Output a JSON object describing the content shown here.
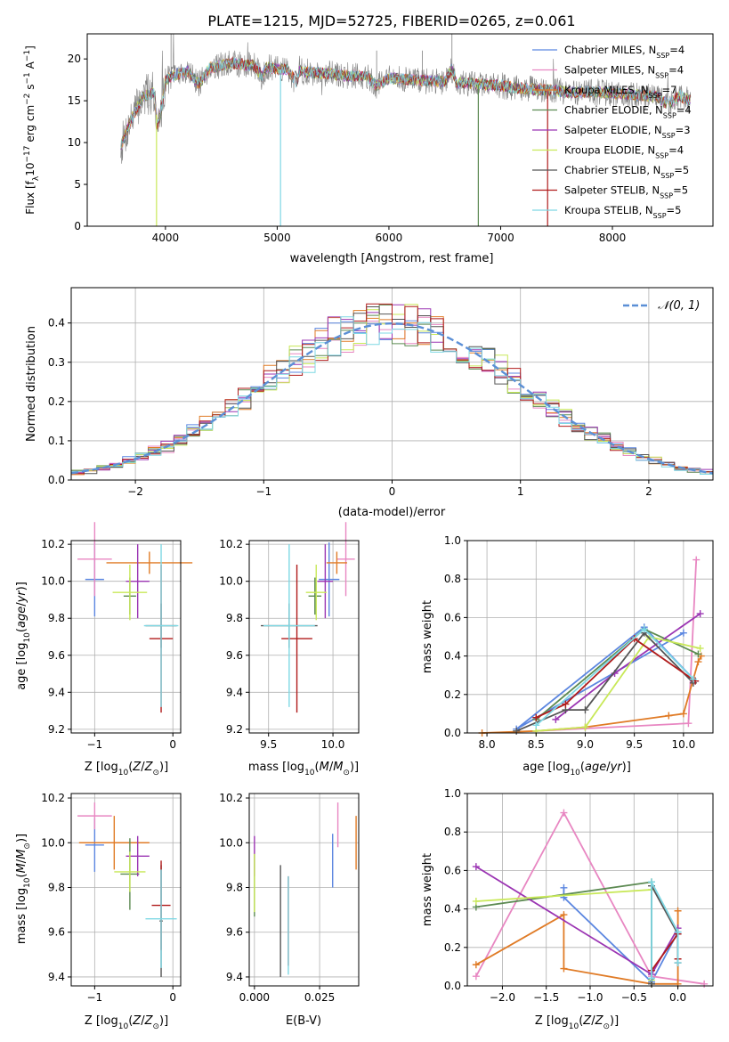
{
  "figure_title": "PLATE=1215, MJD=52725, FIBERID=0265, z=0.061",
  "colors": {
    "Chabrier MILES": "#5b86e0",
    "Salpeter MILES": "#e887c2",
    "Kroupa MILES": "#e07b26",
    "Chabrier ELODIE": "#5c8a52",
    "Salpeter ELODIE": "#9b35b3",
    "Kroupa ELODIE": "#c8e858",
    "Chabrier STELIB": "#555555",
    "Salpeter STELIB": "#b01c1c",
    "Kroupa STELIB": "#7fd8e4"
  },
  "panels": {
    "spectrum": {
      "xlabel": "wavelength [Angstrom, rest frame]",
      "ylabel": "Flux [fλ10⁻¹⁷ erg cm⁻² s⁻¹ A⁻¹]",
      "xticks": [
        "4000",
        "5000",
        "6000",
        "7000",
        "8000"
      ],
      "yticks": [
        "0",
        "5",
        "10",
        "15",
        "20"
      ]
    },
    "histogram": {
      "xlabel": "(data-model)/error",
      "ylabel": "Normed distribution",
      "xticks": [
        "−2",
        "−1",
        "0",
        "1",
        "2"
      ],
      "yticks": [
        "0.0",
        "0.1",
        "0.2",
        "0.3",
        "0.4"
      ],
      "legend_label": "𝒩(0, 1)"
    },
    "age_Z": {
      "xlabel": "Z [log₁₀(Z/Z⊙)]",
      "ylabel": "age  [log₁₀(age/yr)]",
      "xticks": [
        "−1",
        "0"
      ],
      "yticks": [
        "9.2",
        "9.4",
        "9.6",
        "9.8",
        "10.0",
        "10.2"
      ]
    },
    "age_mass": {
      "xlabel": "mass [log₁₀(M/M⊙)]",
      "xticks": [
        "9.5",
        "10.0"
      ],
      "yticks": [
        "9.2",
        "9.4",
        "9.6",
        "9.8",
        "10.0",
        "10.2"
      ]
    },
    "weight_age": {
      "xlabel": "age  [log₁₀(age/yr)]",
      "ylabel": "mass weight",
      "xticks": [
        "8.0",
        "8.5",
        "9.0",
        "9.5",
        "10.0"
      ],
      "yticks": [
        "0.0",
        "0.2",
        "0.4",
        "0.6",
        "0.8",
        "1.0"
      ]
    },
    "mass_Z": {
      "xlabel": "Z [log₁₀(Z/Z⊙)]",
      "ylabel": "mass [log₁₀(M/M⊙)]",
      "xticks": [
        "−1",
        "0"
      ],
      "yticks": [
        "9.4",
        "9.6",
        "9.8",
        "10.0",
        "10.2"
      ]
    },
    "mass_ebv": {
      "xlabel": "E(B-V)",
      "xticks": [
        "0.000",
        "0.025"
      ],
      "yticks": [
        "9.4",
        "9.6",
        "9.8",
        "10.0",
        "10.2"
      ]
    },
    "weight_Z": {
      "xlabel": "Z [log₁₀(Z/Z⊙)]",
      "ylabel": "mass weight",
      "xticks": [
        "−2.0",
        "−1.5",
        "−1.0",
        "−0.5",
        "0.0"
      ],
      "yticks": [
        "0.0",
        "0.2",
        "0.4",
        "0.6",
        "0.8",
        "1.0"
      ]
    }
  },
  "chart_data": [
    {
      "type": "line",
      "title": "PLATE=1215, MJD=52725, FIBERID=0265, z=0.061",
      "xlabel": "wavelength [Angstrom, rest frame]",
      "ylabel": "Flux [fλ10⁻¹⁷ erg cm⁻² s⁻¹ A⁻¹]",
      "xlim": [
        3300,
        8900
      ],
      "ylim": [
        0,
        23
      ],
      "grid": false,
      "legend_position": "top-right",
      "spectrum_anchors": {
        "x": [
          3600,
          3700,
          3800,
          3900,
          3930,
          3970,
          4000,
          4100,
          4200,
          4300,
          4400,
          4500,
          4600,
          4700,
          4800,
          4861,
          4900,
          5000,
          5100,
          5175,
          5200,
          5300,
          5400,
          5500,
          5600,
          5700,
          5800,
          5890,
          6000,
          6100,
          6200,
          6300,
          6400,
          6500,
          6563,
          6600,
          6700,
          6800,
          6900,
          7000,
          7100,
          7200,
          7300,
          7400,
          7500,
          7600,
          7700,
          7800,
          7900,
          8000,
          8100,
          8200,
          8300,
          8400,
          8500,
          8600,
          8700
        ],
        "y": [
          9.5,
          13.0,
          15.5,
          16.0,
          12.0,
          14.5,
          17.5,
          18.2,
          18.5,
          17.0,
          19.0,
          19.2,
          19.5,
          19.3,
          19.2,
          17.8,
          19.0,
          18.8,
          18.7,
          17.0,
          18.5,
          18.4,
          18.3,
          18.2,
          18.0,
          18.0,
          17.9,
          16.8,
          17.7,
          17.6,
          17.5,
          17.4,
          17.3,
          17.3,
          18.8,
          17.2,
          17.1,
          17.0,
          16.9,
          16.8,
          16.6,
          16.5,
          16.4,
          16.3,
          16.2,
          16.0,
          16.0,
          16.1,
          16.0,
          15.9,
          15.8,
          15.7,
          15.6,
          15.5,
          14.5,
          15.6,
          15.0
        ]
      },
      "series": [
        {
          "name": "Chabrier MILES, N_SSP=4",
          "legend": "Chabrier MILES, N",
          "legend_sub": "SSP",
          "legend_tail": "=4",
          "color": "#5b86e0"
        },
        {
          "name": "Salpeter MILES, N_SSP=4",
          "legend": "Salpeter MILES, N",
          "legend_sub": "SSP",
          "legend_tail": "=4",
          "color": "#e887c2"
        },
        {
          "name": "Kroupa MILES, N_SSP=7",
          "legend": "Kroupa MILES, N",
          "legend_sub": "SSP",
          "legend_tail": "=7",
          "color": "#e07b26"
        },
        {
          "name": "Chabrier ELODIE, N_SSP=4",
          "legend": "Chabrier ELODIE, N",
          "legend_sub": "SSP",
          "legend_tail": "=4",
          "color": "#5c8a52"
        },
        {
          "name": "Salpeter ELODIE, N_SSP=3",
          "legend": "Salpeter ELODIE, N",
          "legend_sub": "SSP",
          "legend_tail": "=3",
          "color": "#9b35b3"
        },
        {
          "name": "Kroupa ELODIE, N_SSP=4",
          "legend": "Kroupa ELODIE, N",
          "legend_sub": "SSP",
          "legend_tail": "=4",
          "color": "#c8e858"
        },
        {
          "name": "Chabrier STELIB, N_SSP=5",
          "legend": "Chabrier STELIB, N",
          "legend_sub": "SSP",
          "legend_tail": "=5",
          "color": "#555555"
        },
        {
          "name": "Salpeter STELIB, N_SSP=5",
          "legend": "Salpeter STELIB, N",
          "legend_sub": "SSP",
          "legend_tail": "=5",
          "color": "#b01c1c"
        },
        {
          "name": "Kroupa STELIB, N_SSP=5",
          "legend": "Kroupa STELIB, N",
          "legend_sub": "SSP",
          "legend_tail": "=5",
          "color": "#7fd8e4"
        }
      ],
      "model_spikes": [
        {
          "x": 3920,
          "color": "#c8e858"
        },
        {
          "x": 5030,
          "color": "#7fd8e4"
        },
        {
          "x": 6800,
          "color": "#5c8a52"
        },
        {
          "x": 7420,
          "color": "#b01c1c"
        }
      ]
    },
    {
      "type": "histogram",
      "xlabel": "(data-model)/error",
      "ylabel": "Normed distribution",
      "xlim": [
        -2.5,
        2.5
      ],
      "ylim": [
        0,
        0.49
      ],
      "grid": true,
      "bin_width": 0.1,
      "reference_curve": {
        "name": "𝒩(0, 1)",
        "mean": 0,
        "sigma": 1,
        "color": "#5b8fd6",
        "style": "dashed"
      },
      "legend_position": "top-right"
    },
    {
      "type": "scatter",
      "xlabel": "Z [log₁₀(Z/Z⊙)]",
      "ylabel": "age  [log₁₀(age/yr)]",
      "xlim": [
        -1.3,
        0.1
      ],
      "ylim": [
        9.18,
        10.22
      ],
      "points": [
        {
          "series": "Chabrier MILES",
          "x": -1.0,
          "xerr": 0.12,
          "y": 10.01,
          "yerr": 0.2
        },
        {
          "series": "Salpeter MILES",
          "x": -1.0,
          "xerr": 0.22,
          "y": 10.12,
          "yerr": 0.2
        },
        {
          "series": "Kroupa MILES",
          "x": -0.3,
          "xerr": 0.55,
          "y": 10.1,
          "yerr": 0.06
        },
        {
          "series": "Chabrier ELODIE",
          "x": -0.55,
          "xerr": 0.08,
          "y": 9.92,
          "yerr": 0.1
        },
        {
          "series": "Salpeter ELODIE",
          "x": -0.45,
          "xerr": 0.15,
          "y": 10.0,
          "yerr": 0.2
        },
        {
          "series": "Kroupa ELODIE",
          "x": -0.55,
          "xerr": 0.22,
          "y": 9.94,
          "yerr": 0.15
        },
        {
          "series": "Chabrier STELIB",
          "x": -0.15,
          "xerr": 0.2,
          "y": 9.76,
          "yerr": 0.12
        },
        {
          "series": "Salpeter STELIB",
          "x": -0.15,
          "xerr": 0.15,
          "y": 9.69,
          "yerr": 0.4
        },
        {
          "series": "Kroupa STELIB",
          "x": -0.15,
          "xerr": 0.22,
          "y": 9.76,
          "yerr": 0.44
        }
      ]
    },
    {
      "type": "scatter",
      "xlabel": "mass [log₁₀(M/M⊙)]",
      "xlim": [
        9.35,
        10.2
      ],
      "ylim": [
        9.18,
        10.22
      ],
      "points": [
        {
          "series": "Chabrier MILES",
          "x": 9.97,
          "xerr": 0.08,
          "y": 10.01,
          "yerr": 0.2
        },
        {
          "series": "Salpeter MILES",
          "x": 10.1,
          "xerr": 0.07,
          "y": 10.12,
          "yerr": 0.2
        },
        {
          "series": "Kroupa MILES",
          "x": 10.03,
          "xerr": 0.08,
          "y": 10.1,
          "yerr": 0.06
        },
        {
          "series": "Chabrier ELODIE",
          "x": 9.86,
          "xerr": 0.05,
          "y": 9.92,
          "yerr": 0.1
        },
        {
          "series": "Salpeter ELODIE",
          "x": 9.94,
          "xerr": 0.06,
          "y": 10.0,
          "yerr": 0.2
        },
        {
          "series": "Kroupa ELODIE",
          "x": 9.87,
          "xerr": 0.08,
          "y": 9.94,
          "yerr": 0.15
        },
        {
          "series": "Chabrier STELIB",
          "x": 9.66,
          "xerr": 0.22,
          "y": 9.76,
          "yerr": 0.12
        },
        {
          "series": "Salpeter STELIB",
          "x": 9.72,
          "xerr": 0.12,
          "y": 9.69,
          "yerr": 0.4
        },
        {
          "series": "Kroupa STELIB",
          "x": 9.66,
          "xerr": 0.2,
          "y": 9.76,
          "yerr": 0.44
        }
      ]
    },
    {
      "type": "line",
      "xlabel": "age  [log₁₀(age/yr)]",
      "ylabel": "mass weight",
      "xlim": [
        7.8,
        10.3
      ],
      "ylim": [
        0,
        1.0
      ],
      "grid": true,
      "series": [
        {
          "name": "Chabrier MILES",
          "x": [
            10.0,
            8.3,
            9.6,
            10.12
          ],
          "y": [
            0.52,
            0.02,
            0.55,
            0.27
          ]
        },
        {
          "name": "Salpeter MILES",
          "x": [
            8.5,
            10.05,
            10.13
          ],
          "y": [
            0.01,
            0.05,
            0.9
          ]
        },
        {
          "name": "Kroupa MILES",
          "x": [
            7.95,
            8.5,
            9.0,
            9.85,
            10.0,
            10.15,
            10.18
          ],
          "y": [
            0.0,
            0.01,
            0.03,
            0.09,
            0.1,
            0.37,
            0.4
          ]
        },
        {
          "name": "Chabrier ELODIE",
          "x": [
            8.5,
            9.6,
            10.15
          ],
          "y": [
            0.07,
            0.54,
            0.41
          ]
        },
        {
          "name": "Salpeter ELODIE",
          "x": [
            8.7,
            9.3,
            10.17
          ],
          "y": [
            0.07,
            0.31,
            0.62
          ]
        },
        {
          "name": "Kroupa ELODIE",
          "x": [
            8.5,
            9.0,
            9.65,
            10.17
          ],
          "y": [
            0.01,
            0.03,
            0.5,
            0.44
          ]
        },
        {
          "name": "Chabrier STELIB",
          "x": [
            8.3,
            8.8,
            9.0,
            9.6,
            10.1
          ],
          "y": [
            0.01,
            0.12,
            0.12,
            0.52,
            0.26
          ]
        },
        {
          "name": "Salpeter STELIB",
          "x": [
            8.5,
            8.8,
            9.5,
            10.12
          ],
          "y": [
            0.08,
            0.15,
            0.49,
            0.27
          ]
        },
        {
          "name": "Kroupa STELIB",
          "x": [
            8.5,
            9.6,
            10.1
          ],
          "y": [
            0.04,
            0.54,
            0.28
          ]
        }
      ]
    },
    {
      "type": "scatter",
      "xlabel": "Z [log₁₀(Z/Z⊙)]",
      "ylabel": "mass [log₁₀(M/M⊙)]",
      "xlim": [
        -1.3,
        0.1
      ],
      "ylim": [
        9.36,
        10.22
      ],
      "points": [
        {
          "series": "Chabrier MILES",
          "x": -1.0,
          "xerr": 0.12,
          "y": 9.99,
          "yerr": 0.12
        },
        {
          "series": "Salpeter MILES",
          "x": -1.0,
          "xerr": 0.22,
          "y": 10.12,
          "yerr": 0.06
        },
        {
          "series": "Kroupa MILES",
          "x": -0.75,
          "xerr": 0.45,
          "y": 10.0,
          "yerr": 0.12
        },
        {
          "series": "Chabrier ELODIE",
          "x": -0.55,
          "xerr": 0.12,
          "y": 9.86,
          "yerr": 0.16
        },
        {
          "series": "Salpeter ELODIE",
          "x": -0.45,
          "xerr": 0.15,
          "y": 9.94,
          "yerr": 0.09
        },
        {
          "series": "Kroupa ELODIE",
          "x": -0.55,
          "xerr": 0.2,
          "y": 9.87,
          "yerr": 0.09
        },
        {
          "series": "Chabrier STELIB",
          "x": -0.15,
          "xerr": 0.02,
          "y": 9.65,
          "yerr": 0.25
        },
        {
          "series": "Salpeter STELIB",
          "x": -0.15,
          "xerr": 0.12,
          "y": 9.72,
          "yerr": 0.2
        },
        {
          "series": "Kroupa STELIB",
          "x": -0.15,
          "xerr": 0.2,
          "y": 9.66,
          "yerr": 0.22
        }
      ]
    },
    {
      "type": "scatter",
      "xlabel": "E(B-V)",
      "xlim": [
        -0.002,
        0.04
      ],
      "ylim": [
        9.36,
        10.22
      ],
      "points": [
        {
          "series": "Chabrier MILES",
          "x": 0.03,
          "y": 9.92,
          "yerr": 0.12
        },
        {
          "series": "Salpeter MILES",
          "x": 0.032,
          "y": 10.08,
          "yerr": 0.1
        },
        {
          "series": "Kroupa MILES",
          "x": 0.039,
          "y": 10.0,
          "yerr": 0.12
        },
        {
          "series": "Chabrier ELODIE",
          "x": 0.0,
          "y": 9.81,
          "yerr": 0.14
        },
        {
          "series": "Salpeter ELODIE",
          "x": 0.0,
          "y": 9.94,
          "yerr": 0.09
        },
        {
          "series": "Kroupa ELODIE",
          "x": 0.0,
          "y": 9.82,
          "yerr": 0.13
        },
        {
          "series": "Chabrier STELIB",
          "x": 0.01,
          "y": 9.65,
          "yerr": 0.25
        },
        {
          "series": "Salpeter STELIB",
          "x": 0.013,
          "y": 9.65,
          "yerr": 0.2
        },
        {
          "series": "Kroupa STELIB",
          "x": 0.013,
          "y": 9.63,
          "yerr": 0.22
        }
      ]
    },
    {
      "type": "line",
      "xlabel": "Z [log₁₀(Z/Z⊙)]",
      "ylabel": "mass weight",
      "xlim": [
        -2.4,
        0.4
      ],
      "ylim": [
        0,
        1.0
      ],
      "grid": true,
      "series": [
        {
          "name": "Chabrier MILES",
          "x": [
            -1.3,
            -1.3,
            -0.3,
            0.0
          ],
          "y": [
            0.51,
            0.46,
            0.02,
            0.28
          ]
        },
        {
          "name": "Salpeter MILES",
          "x": [
            -2.3,
            -1.3,
            -0.3,
            0.3
          ],
          "y": [
            0.05,
            0.9,
            0.05,
            0.01
          ]
        },
        {
          "name": "Kroupa MILES",
          "x": [
            -2.3,
            -1.3,
            -1.3,
            -0.3,
            0.0,
            0.0
          ],
          "y": [
            0.11,
            0.37,
            0.09,
            0.01,
            0.01,
            0.39
          ]
        },
        {
          "name": "Chabrier ELODIE",
          "x": [
            -2.3,
            -0.3,
            -0.3
          ],
          "y": [
            0.41,
            0.54,
            0.01
          ]
        },
        {
          "name": "Salpeter ELODIE",
          "x": [
            -2.3,
            -0.3,
            0.0
          ],
          "y": [
            0.62,
            0.06,
            0.3
          ]
        },
        {
          "name": "Kroupa ELODIE",
          "x": [
            -2.3,
            -0.3,
            -0.3
          ],
          "y": [
            0.44,
            0.5,
            0.03
          ]
        },
        {
          "name": "Chabrier STELIB",
          "x": [
            -0.3,
            -0.3,
            0.0,
            0.0
          ],
          "y": [
            0.01,
            0.52,
            0.27,
            0.12
          ]
        },
        {
          "name": "Salpeter STELIB",
          "x": [
            -0.3,
            0.0,
            0.0
          ],
          "y": [
            0.08,
            0.27,
            0.14
          ]
        },
        {
          "name": "Kroupa STELIB",
          "x": [
            -0.3,
            -0.3,
            0.0,
            0.0
          ],
          "y": [
            0.04,
            0.54,
            0.28,
            0.12
          ]
        }
      ]
    }
  ]
}
